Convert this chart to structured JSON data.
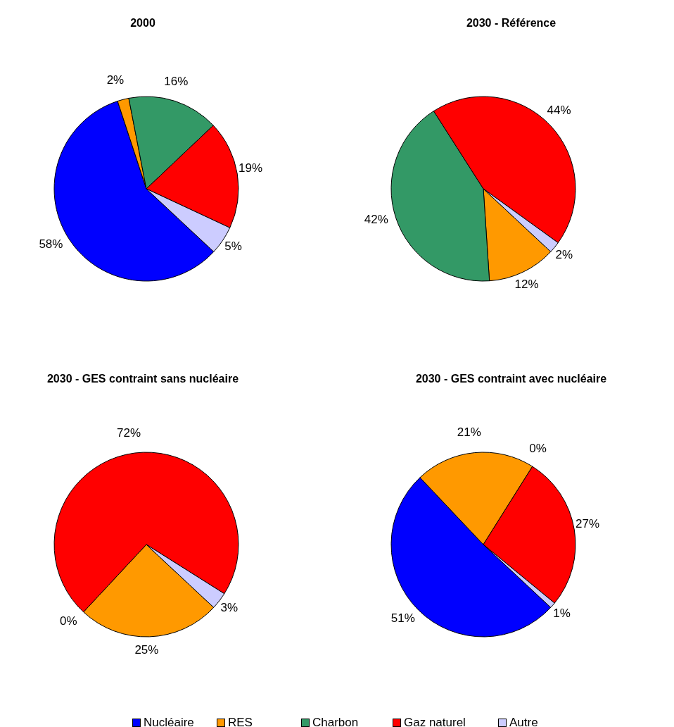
{
  "chart_data": [
    {
      "type": "pie",
      "title": "2000",
      "categories": [
        "Nucléaire",
        "RES",
        "Charbon",
        "Gaz naturel",
        "Autre"
      ],
      "values": [
        58,
        2,
        16,
        19,
        5
      ],
      "colors": [
        "#0000ff",
        "#ff9900",
        "#339966",
        "#ff0000",
        "#ccccff"
      ],
      "value_labels": [
        "58%",
        "2%",
        "16%",
        "19%",
        "5%"
      ],
      "legend": "bottom"
    },
    {
      "type": "pie",
      "title": "2030 - Référence",
      "categories": [
        null,
        null,
        null,
        null,
        null
      ],
      "values": [
        0,
        12,
        42,
        44,
        2
      ],
      "colors": [
        "#0000ff",
        "#ff9900",
        "#339966",
        "#ff0000",
        "#ccccff"
      ],
      "value_labels": [
        null,
        "12%",
        "42%",
        "44%",
        "2%"
      ]
    },
    {
      "type": "pie",
      "title": "2030 - GES contraint sans nucléaire",
      "categories": [
        null,
        null,
        null,
        null,
        null
      ],
      "values": [
        0,
        25,
        0,
        72,
        3
      ],
      "colors": [
        "#0000ff",
        "#ff9900",
        "#339966",
        "#ff0000",
        "#ccccff"
      ],
      "value_labels": [
        null,
        "25%",
        "0%",
        "72%",
        "3%"
      ]
    },
    {
      "type": "pie",
      "title": "2030 - GES contraint avec nucléaire",
      "categories": [
        null,
        null,
        null,
        null,
        null
      ],
      "values": [
        51,
        21,
        0,
        27,
        1
      ],
      "colors": [
        "#0000ff",
        "#ff9900",
        "#339966",
        "#ff0000",
        "#ccccff"
      ],
      "value_labels": [
        "51%",
        "21%",
        "0%",
        "27%",
        "1%"
      ]
    }
  ]
}
